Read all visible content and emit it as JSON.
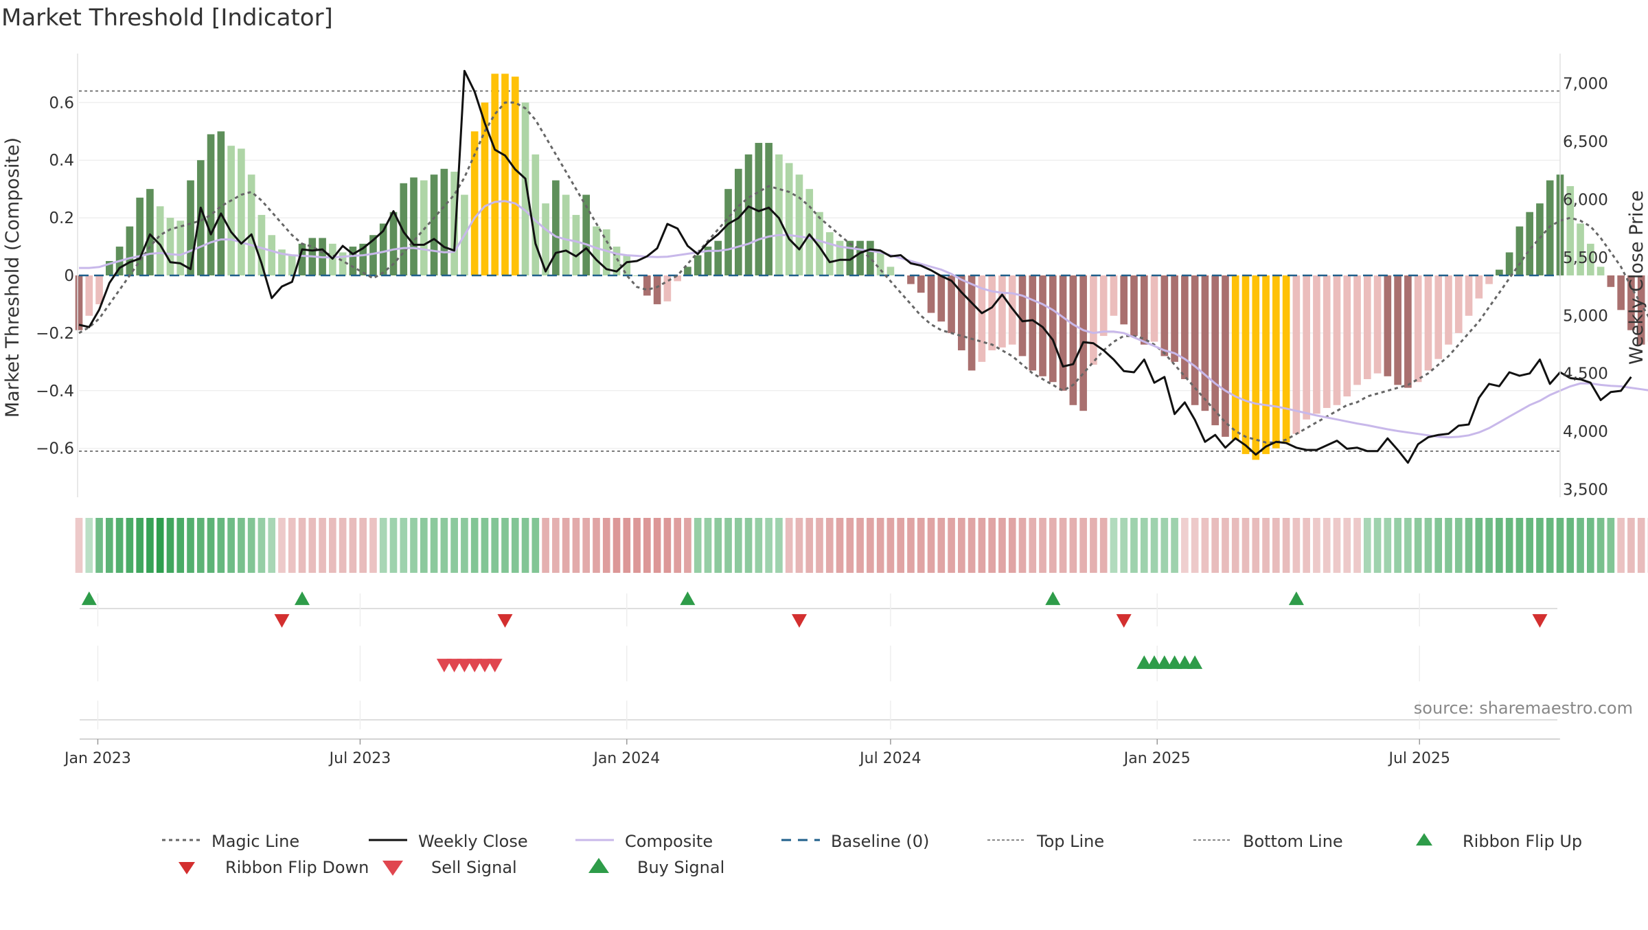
{
  "title": "Market Threshold [Indicator]",
  "source": "source: sharemaestro.com",
  "colors": {
    "bull_strong": "#5e8f5a",
    "bull_weak": "#aed5a6",
    "bear_strong": "#a9706f",
    "bear_weak": "#ebbdbc",
    "extreme": "#ffc107",
    "close_line": "#111111",
    "composite_line": "#c8b8ea",
    "magic_line": "#666666",
    "baseline": "#1f5f8b",
    "ribbon_up": "#2e9c49",
    "ribbon_down": "#d32f2f",
    "sell_signal": "#e0464f",
    "buy_signal": "#2e9c49"
  },
  "chart_data": {
    "type": "bar",
    "x_axis": {
      "start": "2022-12-19",
      "end": "2025-10-06",
      "ticks": [
        "2023-01-01",
        "2023-07-01",
        "2024-01-01",
        "2024-07-01",
        "2025-01-01",
        "2025-07-01"
      ],
      "tick_labels": [
        "Jan 2023",
        "Jul 2023",
        "Jan 2024",
        "Jul 2024",
        "Jan 2025",
        "Jul 2025"
      ]
    },
    "left_axis": {
      "label": "Market Threshold (Composite)",
      "ylim": [
        -0.77,
        0.77
      ],
      "ticks": [
        0.6,
        0.4,
        0.2,
        0,
        -0.2,
        -0.4,
        -0.6
      ],
      "tick_labels": [
        "0.6",
        "0.4",
        "0.2",
        "0",
        "−0.2",
        "−0.4",
        "−0.6"
      ]
    },
    "right_axis": {
      "label": "Weekly Close Price",
      "ylim": [
        3432,
        7259
      ],
      "ticks": [
        7000,
        6500,
        6000,
        5500,
        5000,
        4500,
        4000,
        3500
      ],
      "tick_labels": [
        "7,000",
        "6,500",
        "6,000",
        "5,500",
        "5,000",
        "4,500",
        "4,000",
        "3,500"
      ]
    },
    "top_line": 0.64,
    "bottom_line": -0.61,
    "bars": {
      "start": "2022-12-19",
      "step_days": 7,
      "values": [
        -0.19,
        -0.14,
        -0.1,
        0.05,
        0.1,
        0.17,
        0.27,
        0.3,
        0.24,
        0.2,
        0.19,
        0.33,
        0.4,
        0.49,
        0.5,
        0.45,
        0.44,
        0.35,
        0.21,
        0.14,
        0.09,
        0.07,
        0.11,
        0.13,
        0.13,
        0.11,
        0.08,
        0.1,
        0.11,
        0.14,
        0.18,
        0.22,
        0.32,
        0.34,
        0.33,
        0.35,
        0.37,
        0.36,
        0.28,
        0.5,
        0.6,
        0.7,
        0.7,
        0.69,
        0.6,
        0.42,
        0.25,
        0.33,
        0.28,
        0.21,
        0.28,
        0.17,
        0.16,
        0.1,
        0.07,
        0.0,
        -0.07,
        -0.1,
        -0.09,
        -0.02,
        0.03,
        0.07,
        0.1,
        0.12,
        0.3,
        0.37,
        0.42,
        0.46,
        0.46,
        0.42,
        0.39,
        0.35,
        0.3,
        0.22,
        0.15,
        0.12,
        0.12,
        0.12,
        0.12,
        0.08,
        0.03,
        0.0,
        -0.03,
        -0.06,
        -0.13,
        -0.16,
        -0.2,
        -0.26,
        -0.33,
        -0.3,
        -0.26,
        -0.25,
        -0.24,
        -0.28,
        -0.33,
        -0.35,
        -0.37,
        -0.4,
        -0.45,
        -0.47,
        -0.31,
        -0.21,
        -0.14,
        -0.17,
        -0.21,
        -0.24,
        -0.23,
        -0.28,
        -0.3,
        -0.36,
        -0.45,
        -0.47,
        -0.52,
        -0.56,
        -0.57,
        -0.62,
        -0.64,
        -0.62,
        -0.6,
        -0.58,
        -0.55,
        -0.5,
        -0.48,
        -0.46,
        -0.45,
        -0.42,
        -0.38,
        -0.36,
        -0.34,
        -0.35,
        -0.38,
        -0.39,
        -0.37,
        -0.33,
        -0.29,
        -0.24,
        -0.2,
        -0.14,
        -0.08,
        -0.03,
        0.02,
        0.08,
        0.17,
        0.22,
        0.25,
        0.33,
        0.35,
        0.31,
        0.18,
        0.11,
        0.03,
        -0.04,
        -0.12,
        -0.19,
        -0.24,
        -0.23
      ],
      "extreme_weeks": [
        39,
        40,
        41,
        42,
        43,
        114,
        115,
        116,
        117,
        118,
        119
      ]
    },
    "series": [
      {
        "name": "Weekly Close",
        "axis": "right",
        "start": "2022-12-19",
        "step_days": 7,
        "values": [
          4920,
          4900,
          5050,
          5280,
          5410,
          5460,
          5490,
          5700,
          5610,
          5460,
          5450,
          5400,
          5930,
          5700,
          5880,
          5720,
          5620,
          5700,
          5450,
          5150,
          5250,
          5290,
          5570,
          5560,
          5570,
          5490,
          5600,
          5530,
          5580,
          5650,
          5730,
          5900,
          5720,
          5610,
          5610,
          5660,
          5590,
          5560,
          7110,
          6930,
          6660,
          6430,
          6380,
          6260,
          6180,
          5620,
          5380,
          5540,
          5560,
          5510,
          5580,
          5480,
          5400,
          5380,
          5460,
          5470,
          5510,
          5580,
          5790,
          5750,
          5600,
          5530,
          5630,
          5700,
          5790,
          5840,
          5940,
          5900,
          5930,
          5840,
          5660,
          5570,
          5700,
          5590,
          5460,
          5480,
          5480,
          5540,
          5570,
          5560,
          5510,
          5520,
          5450,
          5430,
          5390,
          5340,
          5300,
          5200,
          5110,
          5020,
          5070,
          5180,
          5060,
          4950,
          4960,
          4900,
          4790,
          4560,
          4580,
          4770,
          4760,
          4700,
          4620,
          4520,
          4510,
          4620,
          4420,
          4470,
          4150,
          4250,
          4100,
          3910,
          3970,
          3860,
          3940,
          3880,
          3800,
          3870,
          3910,
          3900,
          3860,
          3840,
          3840,
          3880,
          3920,
          3850,
          3860,
          3830,
          3830,
          3940,
          3840,
          3730,
          3890,
          3950,
          3970,
          3980,
          4050,
          4060,
          4290,
          4410,
          4390,
          4510,
          4480,
          4500,
          4620,
          4410,
          4510,
          4460,
          4450,
          4420,
          4270,
          4340,
          4350,
          4470
        ]
      },
      {
        "name": "Composite",
        "axis": "left",
        "start": "2022-12-19",
        "step_days": 7,
        "values": [
          0.026,
          0.026,
          0.029,
          0.04,
          0.05,
          0.06,
          0.067,
          0.075,
          0.078,
          0.074,
          0.071,
          0.085,
          0.1,
          0.115,
          0.125,
          0.125,
          0.115,
          0.105,
          0.095,
          0.085,
          0.075,
          0.07,
          0.068,
          0.066,
          0.063,
          0.063,
          0.065,
          0.068,
          0.07,
          0.075,
          0.082,
          0.09,
          0.095,
          0.095,
          0.09,
          0.085,
          0.08,
          0.082,
          0.14,
          0.2,
          0.24,
          0.255,
          0.258,
          0.25,
          0.225,
          0.19,
          0.16,
          0.135,
          0.125,
          0.118,
          0.108,
          0.095,
          0.085,
          0.075,
          0.07,
          0.068,
          0.065,
          0.064,
          0.065,
          0.07,
          0.075,
          0.08,
          0.085,
          0.085,
          0.09,
          0.1,
          0.11,
          0.125,
          0.135,
          0.14,
          0.14,
          0.135,
          0.13,
          0.12,
          0.11,
          0.1,
          0.095,
          0.09,
          0.085,
          0.08,
          0.07,
          0.06,
          0.05,
          0.04,
          0.03,
          0.02,
          0.005,
          -0.015,
          -0.03,
          -0.045,
          -0.055,
          -0.06,
          -0.062,
          -0.07,
          -0.085,
          -0.1,
          -0.12,
          -0.145,
          -0.17,
          -0.19,
          -0.2,
          -0.195,
          -0.195,
          -0.2,
          -0.215,
          -0.23,
          -0.245,
          -0.26,
          -0.27,
          -0.29,
          -0.315,
          -0.345,
          -0.375,
          -0.4,
          -0.42,
          -0.435,
          -0.445,
          -0.45,
          -0.455,
          -0.462,
          -0.47,
          -0.478,
          -0.486,
          -0.493,
          -0.5,
          -0.507,
          -0.514,
          -0.52,
          -0.527,
          -0.534,
          -0.54,
          -0.545,
          -0.55,
          -0.555,
          -0.56,
          -0.562,
          -0.56,
          -0.555,
          -0.545,
          -0.53,
          -0.51,
          -0.49,
          -0.47,
          -0.45,
          -0.435,
          -0.415,
          -0.4,
          -0.385,
          -0.375,
          -0.375,
          -0.38,
          -0.383,
          -0.385,
          -0.39,
          -0.395,
          -0.4,
          -0.404,
          -0.41,
          -0.4
        ]
      },
      {
        "name": "Magic Line",
        "axis": "left",
        "start": "2022-12-19",
        "step_days": 7,
        "values": [
          -0.2,
          -0.18,
          -0.15,
          -0.1,
          -0.05,
          0.0,
          0.05,
          0.1,
          0.14,
          0.16,
          0.17,
          0.18,
          0.19,
          0.21,
          0.24,
          0.26,
          0.28,
          0.29,
          0.26,
          0.22,
          0.18,
          0.14,
          0.11,
          0.1,
          0.08,
          0.07,
          0.05,
          0.03,
          0.01,
          -0.01,
          0.01,
          0.04,
          0.08,
          0.12,
          0.16,
          0.2,
          0.24,
          0.28,
          0.34,
          0.42,
          0.5,
          0.56,
          0.6,
          0.6,
          0.58,
          0.54,
          0.48,
          0.42,
          0.36,
          0.3,
          0.24,
          0.18,
          0.12,
          0.06,
          0.0,
          -0.04,
          -0.05,
          -0.04,
          -0.02,
          0.0,
          0.04,
          0.08,
          0.12,
          0.16,
          0.2,
          0.24,
          0.27,
          0.29,
          0.31,
          0.3,
          0.29,
          0.27,
          0.24,
          0.2,
          0.17,
          0.14,
          0.11,
          0.09,
          0.06,
          0.02,
          -0.02,
          -0.06,
          -0.1,
          -0.14,
          -0.17,
          -0.19,
          -0.2,
          -0.21,
          -0.22,
          -0.23,
          -0.24,
          -0.26,
          -0.28,
          -0.31,
          -0.34,
          -0.36,
          -0.38,
          -0.4,
          -0.38,
          -0.34,
          -0.3,
          -0.26,
          -0.23,
          -0.21,
          -0.21,
          -0.22,
          -0.24,
          -0.27,
          -0.31,
          -0.35,
          -0.39,
          -0.43,
          -0.47,
          -0.51,
          -0.54,
          -0.56,
          -0.57,
          -0.58,
          -0.58,
          -0.57,
          -0.55,
          -0.53,
          -0.51,
          -0.49,
          -0.47,
          -0.45,
          -0.44,
          -0.42,
          -0.41,
          -0.4,
          -0.39,
          -0.38,
          -0.36,
          -0.34,
          -0.31,
          -0.28,
          -0.24,
          -0.2,
          -0.16,
          -0.11,
          -0.06,
          -0.01,
          0.04,
          0.09,
          0.13,
          0.17,
          0.19,
          0.2,
          0.19,
          0.17,
          0.13,
          0.08,
          0.03,
          -0.04,
          -0.1,
          -0.16,
          -0.2,
          -0.22
        ]
      }
    ],
    "ribbon": {
      "start": "2022-12-19",
      "step_days": 7,
      "values": [
        -0.3,
        0.2,
        0.6,
        0.7,
        0.75,
        0.8,
        0.85,
        0.9,
        0.95,
        0.85,
        0.8,
        0.75,
        0.7,
        0.7,
        0.65,
        0.6,
        0.55,
        0.5,
        0.4,
        0.3,
        -0.3,
        -0.35,
        -0.4,
        -0.4,
        -0.4,
        -0.4,
        -0.4,
        -0.4,
        -0.4,
        -0.35,
        0.3,
        0.35,
        0.35,
        0.4,
        0.45,
        0.45,
        0.45,
        0.45,
        0.45,
        0.5,
        0.5,
        0.5,
        0.5,
        0.5,
        0.5,
        0.5,
        -0.5,
        -0.5,
        -0.55,
        -0.55,
        -0.55,
        -0.6,
        -0.65,
        -0.7,
        -0.7,
        -0.7,
        -0.7,
        -0.7,
        -0.7,
        -0.65,
        -0.6,
        0.4,
        0.4,
        0.45,
        0.45,
        0.45,
        0.45,
        0.4,
        0.35,
        0.35,
        -0.4,
        -0.45,
        -0.5,
        -0.5,
        -0.55,
        -0.6,
        -0.6,
        -0.6,
        -0.6,
        -0.6,
        -0.6,
        -0.6,
        -0.6,
        -0.6,
        -0.6,
        -0.6,
        -0.6,
        -0.6,
        -0.6,
        -0.6,
        -0.6,
        -0.6,
        -0.6,
        -0.55,
        -0.5,
        -0.5,
        -0.5,
        -0.5,
        -0.5,
        -0.5,
        -0.5,
        -0.5,
        0.25,
        0.3,
        0.35,
        0.35,
        0.35,
        0.35,
        0.35,
        -0.25,
        -0.3,
        -0.35,
        -0.4,
        -0.4,
        -0.4,
        -0.4,
        -0.4,
        -0.4,
        -0.4,
        -0.4,
        -0.35,
        -0.35,
        -0.3,
        -0.3,
        -0.3,
        -0.3,
        -0.3,
        0.3,
        0.35,
        0.35,
        0.4,
        0.4,
        0.45,
        0.45,
        0.5,
        0.5,
        0.5,
        0.55,
        0.6,
        0.6,
        0.65,
        0.65,
        0.65,
        0.65,
        0.65,
        0.65,
        0.65,
        0.65,
        0.6,
        0.6,
        0.55,
        0.5,
        -0.35,
        -0.4,
        -0.4,
        -0.45
      ]
    },
    "signals": {
      "ribbon_flip_up": [
        "2022-12-26",
        "2023-05-22",
        "2024-02-12",
        "2024-10-21",
        "2025-04-07"
      ],
      "ribbon_flip_down": [
        "2023-05-08",
        "2023-10-09",
        "2024-04-29",
        "2024-12-09",
        "2025-09-22"
      ],
      "sell_signal": [
        "2023-08-28",
        "2023-09-04",
        "2023-09-11",
        "2023-09-18",
        "2023-09-25",
        "2023-10-02"
      ],
      "buy_signal": [
        "2024-12-23",
        "2024-12-30",
        "2025-01-06",
        "2025-01-13",
        "2025-01-20",
        "2025-01-27"
      ]
    }
  },
  "legend": [
    {
      "key": "magic",
      "label": "Magic Line"
    },
    {
      "key": "close",
      "label": "Weekly Close"
    },
    {
      "key": "composite",
      "label": "Composite"
    },
    {
      "key": "baseline",
      "label": "Baseline (0)"
    },
    {
      "key": "top",
      "label": "Top Line"
    },
    {
      "key": "bottom",
      "label": "Bottom Line"
    },
    {
      "key": "ribbon_up",
      "label": "Ribbon Flip Up"
    },
    {
      "key": "ribbon_down",
      "label": "Ribbon Flip Down"
    },
    {
      "key": "sell",
      "label": "Sell Signal"
    },
    {
      "key": "buy",
      "label": "Buy Signal"
    }
  ]
}
